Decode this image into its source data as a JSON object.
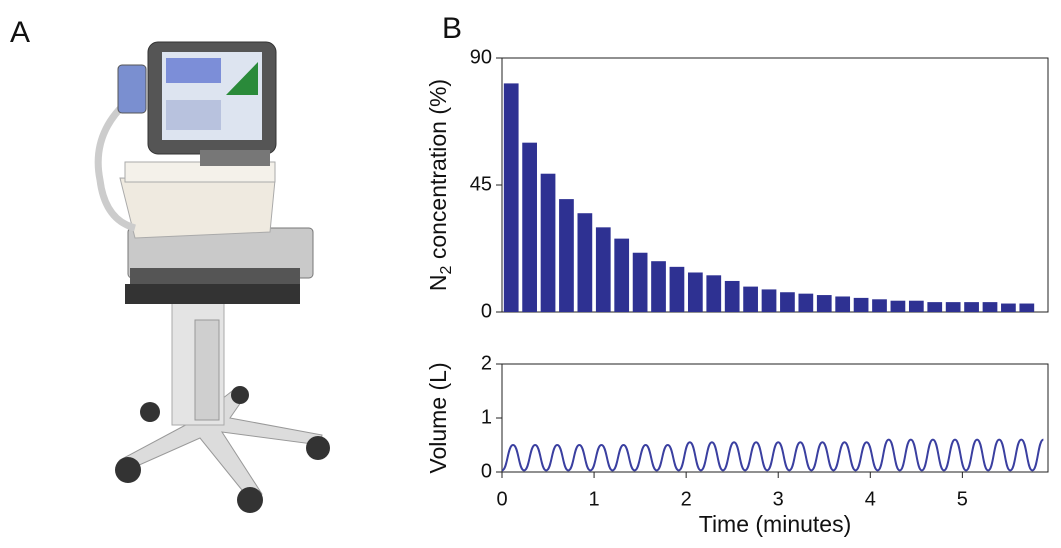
{
  "panels": [
    "A",
    "B"
  ],
  "chart_data": [
    {
      "type": "bar",
      "ylabel_parts": [
        "N",
        "2",
        " concentration (%)"
      ],
      "x": [
        0.1,
        0.3,
        0.5,
        0.7,
        0.9,
        1.1,
        1.3,
        1.5,
        1.7,
        1.9,
        2.1,
        2.3,
        2.5,
        2.7,
        2.9,
        3.1,
        3.3,
        3.5,
        3.7,
        3.9,
        4.1,
        4.3,
        4.5,
        4.7,
        4.9,
        5.1,
        5.3,
        5.5,
        5.7
      ],
      "values": [
        81,
        60,
        49,
        40,
        35,
        30,
        26,
        21,
        18,
        16,
        14,
        13,
        11,
        9,
        8,
        7,
        6.5,
        6,
        5.5,
        5,
        4.5,
        4,
        4,
        3.5,
        3.5,
        3.5,
        3.5,
        3,
        3
      ],
      "color": "#2e3192",
      "xlim": [
        0,
        5.93
      ],
      "ylim": [
        0,
        90
      ],
      "yticks": [
        0,
        45,
        90
      ]
    },
    {
      "type": "line",
      "ylabel": "Volume (L)",
      "xlabel": "Time (minutes)",
      "x": [
        0,
        0.12,
        0.24,
        0.36,
        0.48,
        0.6,
        0.72,
        0.84,
        0.96,
        1.08,
        1.2,
        1.32,
        1.44,
        1.56,
        1.68,
        1.8,
        1.92,
        2.04,
        2.16,
        2.28,
        2.4,
        2.52,
        2.64,
        2.76,
        2.88,
        3.0,
        3.12,
        3.24,
        3.36,
        3.48,
        3.6,
        3.72,
        3.84,
        3.96,
        4.08,
        4.2,
        4.32,
        4.44,
        4.56,
        4.68,
        4.8,
        4.92,
        5.04,
        5.16,
        5.28,
        5.4,
        5.52,
        5.64,
        5.76,
        5.88
      ],
      "values": [
        0.03,
        0.5,
        0.03,
        0.5,
        0.03,
        0.5,
        0.03,
        0.5,
        0.03,
        0.5,
        0.03,
        0.5,
        0.03,
        0.5,
        0.03,
        0.5,
        0.03,
        0.55,
        0.03,
        0.55,
        0.03,
        0.55,
        0.03,
        0.55,
        0.03,
        0.55,
        0.03,
        0.55,
        0.03,
        0.55,
        0.03,
        0.55,
        0.03,
        0.55,
        0.03,
        0.6,
        0.03,
        0.6,
        0.03,
        0.6,
        0.03,
        0.6,
        0.03,
        0.6,
        0.03,
        0.6,
        0.03,
        0.6,
        0.03,
        0.6
      ],
      "color": "#3a3fa0",
      "xlim": [
        0,
        5.93
      ],
      "ylim": [
        0,
        2
      ],
      "yticks": [
        0,
        1,
        2
      ],
      "xticks": [
        0,
        1,
        2,
        3,
        4,
        5
      ]
    }
  ]
}
